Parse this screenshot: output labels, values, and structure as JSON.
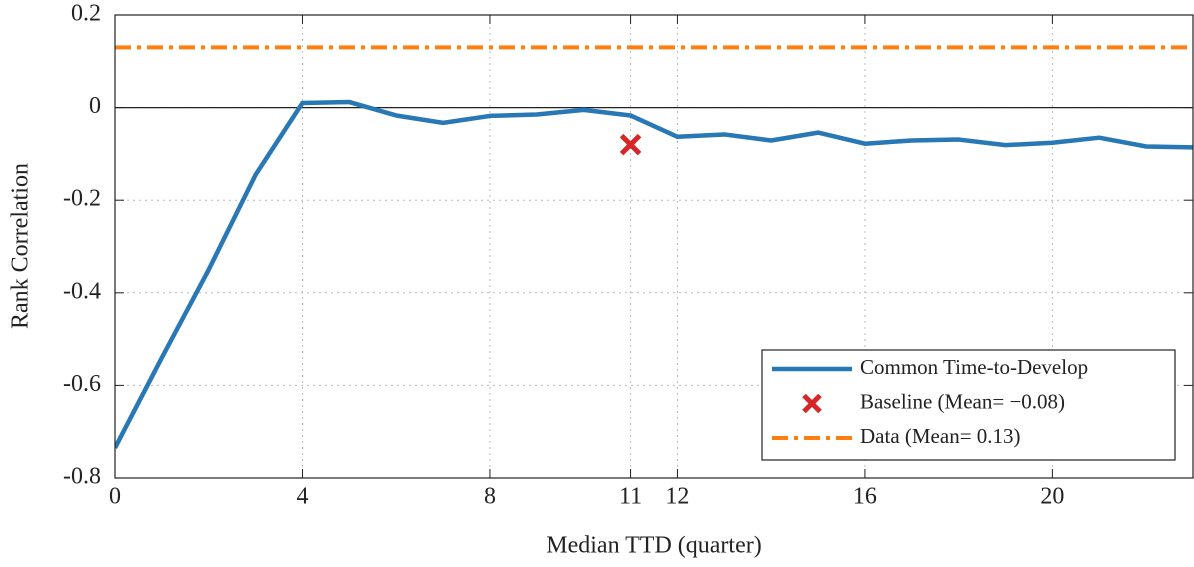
{
  "chart_data": {
    "type": "line",
    "xlabel": "Median TTD (quarter)",
    "ylabel": "Rank Correlation",
    "xlim": [
      0,
      23
    ],
    "ylim": [
      -0.8,
      0.2
    ],
    "xticks": [
      0,
      4,
      8,
      11,
      12,
      16,
      20
    ],
    "yticks": [
      -0.8,
      -0.6,
      -0.4,
      -0.2,
      0,
      0.2
    ],
    "grid": true,
    "zero_line": true,
    "legend": "lower right",
    "series": [
      {
        "name": "Common Time-to-Develop",
        "type": "line",
        "color": "#2878b5",
        "x": [
          0,
          1,
          2,
          3,
          4,
          5,
          6,
          7,
          8,
          9,
          10,
          11,
          12,
          13,
          14,
          15,
          16,
          17,
          18,
          19,
          20,
          21,
          22,
          23
        ],
        "values": [
          -0.735,
          -0.54,
          -0.35,
          -0.145,
          0.01,
          0.012,
          -0.017,
          -0.033,
          -0.018,
          -0.015,
          -0.005,
          -0.017,
          -0.063,
          -0.058,
          -0.071,
          -0.054,
          -0.078,
          -0.071,
          -0.069,
          -0.081,
          -0.076,
          -0.065,
          -0.084,
          -0.086
        ]
      },
      {
        "name": "Baseline (Mean= −0.08)",
        "type": "scatter",
        "color": "#d62728",
        "x": [
          11
        ],
        "values": [
          -0.08
        ]
      },
      {
        "name": "Data (Mean= 0.13)",
        "type": "hline",
        "color": "#ff7f0e",
        "value": 0.13
      }
    ]
  }
}
